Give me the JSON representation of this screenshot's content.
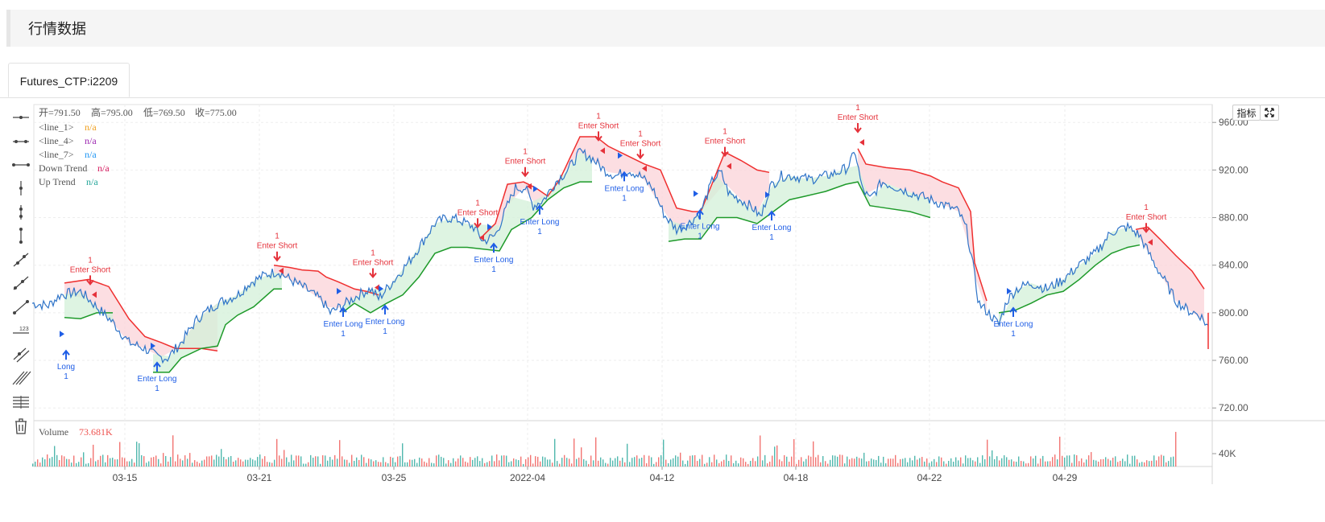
{
  "page": {
    "title": "行情数据"
  },
  "tabs": [
    {
      "label": "Futures_CTP:i2209"
    }
  ],
  "toolbar_buttons": [
    {
      "name": "horizontal-line-icon"
    },
    {
      "name": "horizontal-ray-icon"
    },
    {
      "name": "horizontal-segment-icon"
    },
    {
      "name": "vertical-line-icon"
    },
    {
      "name": "vertical-ray-icon"
    },
    {
      "name": "vertical-segment-icon"
    },
    {
      "name": "trend-line-icon"
    },
    {
      "name": "ray-line-icon"
    },
    {
      "name": "extended-line-icon"
    },
    {
      "name": "price-label-icon"
    },
    {
      "name": "parallel-channel-icon"
    },
    {
      "name": "pitchfork-icon"
    },
    {
      "name": "fib-retracement-icon"
    },
    {
      "name": "trash-icon"
    }
  ],
  "buttons": {
    "indicators": "指标"
  },
  "ohlc": {
    "open_label": "开=",
    "open": "791.50",
    "high_label": "高=",
    "high": "795.00",
    "low_label": "低=",
    "low": "769.50",
    "close_label": "收=",
    "close": "775.00"
  },
  "legend": [
    {
      "label": "<line_1>",
      "value": "n/a",
      "color": "#f0a020"
    },
    {
      "label": "<line_4>",
      "value": "n/a",
      "color": "#9c27b0"
    },
    {
      "label": "<line_7>",
      "value": "n/a",
      "color": "#2196f3"
    },
    {
      "label": "Down Trend",
      "value": "n/a",
      "color": "#d81b60"
    },
    {
      "label": "Up Trend",
      "value": "n/a",
      "color": "#26a69a"
    }
  ],
  "volume_legend": {
    "label": "Volume",
    "value": "73.681K",
    "color": "#ef5350"
  },
  "colors": {
    "price": "#2f74c8",
    "down_trend": "#ef2f2f",
    "up_trend": "#1e9a2a",
    "down_fill": "#fbd3d8",
    "up_fill": "#d3f0d8",
    "long_signal": "#1f5ee6",
    "short_signal": "#e5323b",
    "vol_up": "#26a69a",
    "vol_down": "#ef5350"
  },
  "chart_data": {
    "type": "line",
    "y_axis": {
      "ticks": [
        "960.00",
        "920.00",
        "880.00",
        "840.00",
        "800.00",
        "760.00",
        "720.00"
      ],
      "ylim": [
        710,
        975
      ]
    },
    "volume_axis": {
      "ticks": [
        "40K"
      ]
    },
    "x_axis": {
      "ticks": [
        "03-15",
        "03-21",
        "03-25",
        "2022-04",
        "04-12",
        "04-18",
        "04-22",
        "04-29"
      ]
    },
    "grid": true,
    "series": [
      {
        "points": [
          [
            0,
            808
          ],
          [
            20,
            806
          ],
          [
            35,
            815
          ],
          [
            60,
            818
          ],
          [
            80,
            805
          ],
          [
            100,
            792
          ],
          [
            120,
            775
          ],
          [
            140,
            770
          ],
          [
            155,
            763
          ],
          [
            168,
            762
          ],
          [
            185,
            775
          ],
          [
            205,
            795
          ],
          [
            230,
            808
          ],
          [
            255,
            815
          ],
          [
            270,
            825
          ],
          [
            290,
            832
          ],
          [
            305,
            835
          ],
          [
            320,
            828
          ],
          [
            340,
            820
          ],
          [
            360,
            810
          ],
          [
            370,
            800
          ],
          [
            385,
            806
          ],
          [
            405,
            815
          ],
          [
            420,
            820
          ],
          [
            430,
            812
          ],
          [
            450,
            828
          ],
          [
            470,
            845
          ],
          [
            485,
            860
          ],
          [
            500,
            875
          ],
          [
            515,
            880
          ],
          [
            530,
            878
          ],
          [
            548,
            872
          ],
          [
            560,
            860
          ],
          [
            575,
            865
          ],
          [
            590,
            890
          ],
          [
            600,
            905
          ],
          [
            612,
            905
          ],
          [
            622,
            890
          ],
          [
            635,
            895
          ],
          [
            650,
            910
          ],
          [
            665,
            920
          ],
          [
            680,
            935
          ],
          [
            695,
            930
          ],
          [
            710,
            920
          ],
          [
            725,
            915
          ],
          [
            740,
            920
          ],
          [
            755,
            915
          ],
          [
            770,
            905
          ],
          [
            785,
            882
          ],
          [
            800,
            870
          ],
          [
            815,
            875
          ],
          [
            830,
            885
          ],
          [
            845,
            912
          ],
          [
            855,
            918
          ],
          [
            865,
            900
          ],
          [
            880,
            895
          ],
          [
            895,
            888
          ],
          [
            905,
            880
          ],
          [
            915,
            905
          ],
          [
            930,
            915
          ],
          [
            945,
            915
          ],
          [
            965,
            912
          ],
          [
            985,
            915
          ],
          [
            1000,
            918
          ],
          [
            1012,
            922
          ],
          [
            1022,
            935
          ],
          [
            1030,
            905
          ],
          [
            1040,
            895
          ],
          [
            1055,
            910
          ],
          [
            1075,
            905
          ],
          [
            1095,
            900
          ],
          [
            1115,
            895
          ],
          [
            1135,
            890
          ],
          [
            1150,
            885
          ],
          [
            1160,
            870
          ],
          [
            1168,
            840
          ],
          [
            1175,
            808
          ],
          [
            1190,
            798
          ],
          [
            1200,
            790
          ],
          [
            1210,
            810
          ],
          [
            1222,
            820
          ],
          [
            1240,
            825
          ],
          [
            1260,
            820
          ],
          [
            1280,
            828
          ],
          [
            1300,
            840
          ],
          [
            1320,
            850
          ],
          [
            1340,
            868
          ],
          [
            1360,
            872
          ],
          [
            1375,
            865
          ],
          [
            1390,
            845
          ],
          [
            1405,
            828
          ],
          [
            1420,
            810
          ],
          [
            1435,
            802
          ],
          [
            1450,
            798
          ],
          [
            1460,
            788
          ]
        ]
      },
      {
        "name": "Down Trend",
        "points": [
          [
            40,
            825
          ],
          [
            70,
            828
          ],
          [
            95,
            822
          ],
          [
            120,
            795
          ],
          [
            140,
            780
          ],
          [
            160,
            775
          ],
          [
            178,
            770
          ],
          [
            180,
            770
          ],
          [
            210,
            770
          ],
          [
            230,
            768
          ],
          [
            300,
            840
          ],
          [
            320,
            838
          ],
          [
            335,
            836
          ],
          [
            355,
            835
          ],
          [
            365,
            830
          ],
          [
            380,
            826
          ],
          [
            400,
            820
          ],
          [
            415,
            818
          ],
          [
            430,
            815
          ],
          [
            560,
            865
          ],
          [
            575,
            875
          ],
          [
            590,
            908
          ],
          [
            610,
            910
          ],
          [
            625,
            905
          ],
          [
            640,
            898
          ],
          [
            655,
            912
          ],
          [
            680,
            948
          ],
          [
            700,
            948
          ],
          [
            715,
            940
          ],
          [
            730,
            935
          ],
          [
            745,
            930
          ],
          [
            760,
            925
          ],
          [
            780,
            920
          ],
          [
            800,
            888
          ],
          [
            820,
            885
          ],
          [
            830,
            885
          ],
          [
            860,
            935
          ],
          [
            880,
            928
          ],
          [
            900,
            920
          ],
          [
            915,
            918
          ],
          [
            1025,
            938
          ],
          [
            1035,
            925
          ],
          [
            1060,
            922
          ],
          [
            1090,
            920
          ],
          [
            1115,
            915
          ],
          [
            1130,
            910
          ],
          [
            1150,
            905
          ],
          [
            1165,
            885
          ],
          [
            1170,
            842
          ],
          [
            1185,
            810
          ],
          [
            1370,
            870
          ],
          [
            1385,
            872
          ],
          [
            1400,
            862
          ],
          [
            1420,
            848
          ],
          [
            1440,
            835
          ],
          [
            1455,
            820
          ]
        ]
      },
      {
        "name": "Up Trend",
        "points": [
          [
            40,
            796
          ],
          [
            60,
            795
          ],
          [
            80,
            800
          ],
          [
            100,
            800
          ],
          [
            150,
            750
          ],
          [
            170,
            750
          ],
          [
            185,
            762
          ],
          [
            210,
            770
          ],
          [
            230,
            772
          ],
          [
            240,
            790
          ],
          [
            255,
            798
          ],
          [
            275,
            805
          ],
          [
            300,
            820
          ],
          [
            310,
            820
          ],
          [
            385,
            800
          ],
          [
            400,
            808
          ],
          [
            420,
            800
          ],
          [
            440,
            808
          ],
          [
            460,
            815
          ],
          [
            480,
            830
          ],
          [
            500,
            850
          ],
          [
            520,
            855
          ],
          [
            540,
            855
          ],
          [
            580,
            852
          ],
          [
            595,
            870
          ],
          [
            620,
            880
          ],
          [
            640,
            895
          ],
          [
            660,
            905
          ],
          [
            680,
            910
          ],
          [
            695,
            910
          ],
          [
            790,
            860
          ],
          [
            810,
            862
          ],
          [
            830,
            862
          ],
          [
            850,
            880
          ],
          [
            875,
            880
          ],
          [
            900,
            875
          ],
          [
            920,
            885
          ],
          [
            940,
            895
          ],
          [
            960,
            898
          ],
          [
            985,
            902
          ],
          [
            1010,
            908
          ],
          [
            1025,
            910
          ],
          [
            1040,
            890
          ],
          [
            1060,
            888
          ],
          [
            1090,
            885
          ],
          [
            1115,
            880
          ],
          [
            1200,
            800
          ],
          [
            1220,
            802
          ],
          [
            1240,
            808
          ],
          [
            1260,
            815
          ],
          [
            1280,
            818
          ],
          [
            1300,
            828
          ],
          [
            1320,
            840
          ],
          [
            1340,
            850
          ],
          [
            1360,
            855
          ],
          [
            1375,
            857
          ]
        ]
      }
    ],
    "annotations": [
      {
        "type": "short",
        "label": "Enter Short",
        "count": "1",
        "x": 72,
        "y": 822
      },
      {
        "type": "long",
        "label": "Long",
        "count": "1",
        "x": 42,
        "y": 770
      },
      {
        "type": "long",
        "label": "Enter Long",
        "count": "1",
        "x": 155,
        "y": 760
      },
      {
        "type": "short",
        "label": "Enter Short",
        "count": "1",
        "x": 304,
        "y": 842
      },
      {
        "type": "long",
        "label": "Enter Long",
        "count": "1",
        "x": 386,
        "y": 806
      },
      {
        "type": "short",
        "label": "Enter Short",
        "count": "1",
        "x": 423,
        "y": 828
      },
      {
        "type": "long",
        "label": "Enter Long",
        "count": "1",
        "x": 438,
        "y": 808
      },
      {
        "type": "short",
        "label": "Enter Short",
        "count": "1",
        "x": 553,
        "y": 870
      },
      {
        "type": "long",
        "label": "Enter Long",
        "count": "1",
        "x": 573,
        "y": 860
      },
      {
        "type": "short",
        "label": "Enter Short",
        "count": "1",
        "x": 612,
        "y": 913
      },
      {
        "type": "long",
        "label": "Enter Long",
        "count": "1",
        "x": 630,
        "y": 892
      },
      {
        "type": "short",
        "label": "Enter Short",
        "count": "1",
        "x": 703,
        "y": 943
      },
      {
        "type": "long",
        "label": "Enter Long",
        "count": "1",
        "x": 735,
        "y": 920
      },
      {
        "type": "short",
        "label": "Enter Short",
        "count": "1",
        "x": 755,
        "y": 928
      },
      {
        "type": "long",
        "label": "Enter Long",
        "count": "1",
        "x": 829,
        "y": 888
      },
      {
        "type": "short",
        "label": "Enter Short",
        "count": "1",
        "x": 860,
        "y": 930
      },
      {
        "type": "long",
        "label": "Enter Long",
        "count": "1",
        "x": 918,
        "y": 887
      },
      {
        "type": "short",
        "label": "Enter Short",
        "count": "1",
        "x": 1025,
        "y": 950
      },
      {
        "type": "long",
        "label": "Enter Long",
        "count": "1",
        "x": 1218,
        "y": 806
      },
      {
        "type": "short",
        "label": "Enter Short",
        "count": "1",
        "x": 1383,
        "y": 866
      }
    ]
  }
}
